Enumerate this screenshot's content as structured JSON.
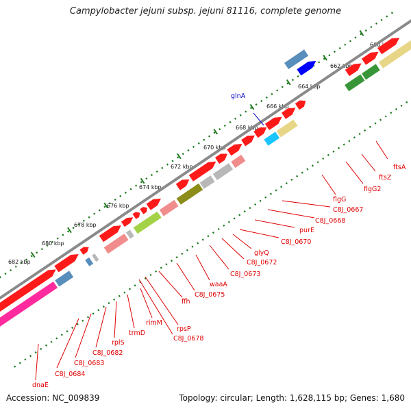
{
  "title": "Campylobacter jejuni subsp. jejuni 81116, complete genome",
  "footer": {
    "accession": "Accession: NC_009839",
    "summary": "Topology: circular; Length: 1,628,115 bp; Genes: 1,680"
  },
  "colors": {
    "background": "#ffffff",
    "backbone": "#8a8a8a",
    "tick": "#1f7a1f",
    "label_red": "#e00000",
    "label_blue": "#0000cc",
    "cds": "#ff1a1a",
    "cds_alt": "#0000ff",
    "category_pink": "#ff1493",
    "category_steel": "#4682b4",
    "category_olive": "#808000",
    "category_green": "#228b22",
    "category_khaki": "#e6d27a",
    "category_salmon": "#f08080",
    "category_grey": "#b0b0b0",
    "category_lime": "#9acd32",
    "category_cyan": "#00bfff"
  },
  "ticks": [
    "660 kbp",
    "662 kbp",
    "664 kbp",
    "666 kbp",
    "668 kbp",
    "670 kbp",
    "672 kbp",
    "674 kbp",
    "676 kbp",
    "678 kbp",
    "680 kbp",
    "682 kbp"
  ],
  "gene_labels": [
    {
      "text": "glnA",
      "color": "blue"
    },
    {
      "text": "ftsA",
      "color": "red"
    },
    {
      "text": "ftsZ",
      "color": "red"
    },
    {
      "text": "flgG2",
      "color": "red"
    },
    {
      "text": "flgG",
      "color": "red"
    },
    {
      "text": "C8J_0667",
      "color": "red"
    },
    {
      "text": "C8J_0668",
      "color": "red"
    },
    {
      "text": "purE",
      "color": "red"
    },
    {
      "text": "C8J_0670",
      "color": "red"
    },
    {
      "text": "glyQ",
      "color": "red"
    },
    {
      "text": "C8J_0672",
      "color": "red"
    },
    {
      "text": "C8J_0673",
      "color": "red"
    },
    {
      "text": "waaA",
      "color": "red"
    },
    {
      "text": "C8J_0675",
      "color": "red"
    },
    {
      "text": "ffh",
      "color": "red"
    },
    {
      "text": "rpsP",
      "color": "red"
    },
    {
      "text": "C8J_0678",
      "color": "red"
    },
    {
      "text": "rimM",
      "color": "red"
    },
    {
      "text": "trmD",
      "color": "red"
    },
    {
      "text": "rplS",
      "color": "red"
    },
    {
      "text": "C8J_0682",
      "color": "red"
    },
    {
      "text": "C8J_0683",
      "color": "red"
    },
    {
      "text": "C8J_0684",
      "color": "red"
    },
    {
      "text": "dnaE",
      "color": "red"
    }
  ]
}
